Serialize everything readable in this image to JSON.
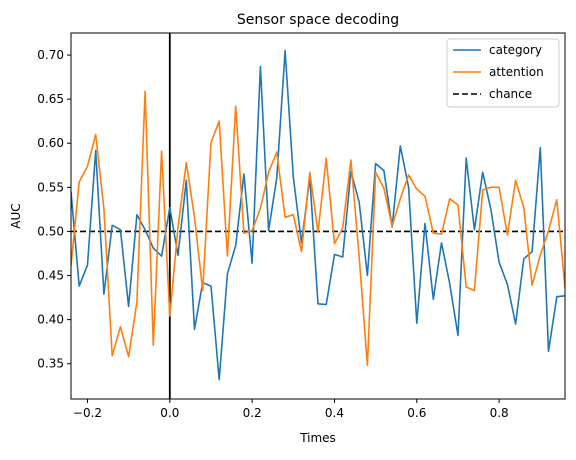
{
  "chart_data": {
    "type": "line",
    "title": "Sensor space decoding",
    "xlabel": "Times",
    "ylabel": "AUC",
    "xlim": [
      -0.24,
      0.96
    ],
    "ylim": [
      0.31,
      0.725
    ],
    "x_ticks": [
      -0.2,
      0.0,
      0.2,
      0.4,
      0.6,
      0.8
    ],
    "x_tick_labels": [
      "−0.2",
      "0.0",
      "0.2",
      "0.4",
      "0.6",
      "0.8"
    ],
    "y_ticks": [
      0.35,
      0.4,
      0.45,
      0.5,
      0.55,
      0.6,
      0.65,
      0.7
    ],
    "y_tick_labels": [
      "0.35",
      "0.40",
      "0.45",
      "0.50",
      "0.55",
      "0.60",
      "0.65",
      "0.70"
    ],
    "grid": false,
    "legend_position": "top-right",
    "x": [
      -0.24,
      -0.22,
      -0.2,
      -0.18,
      -0.16,
      -0.14,
      -0.12,
      -0.1,
      -0.08,
      -0.06,
      -0.04,
      -0.02,
      0.0,
      0.02,
      0.04,
      0.06,
      0.08,
      0.1,
      0.12,
      0.14,
      0.16,
      0.18,
      0.2,
      0.22,
      0.24,
      0.26,
      0.28,
      0.3,
      0.32,
      0.34,
      0.36,
      0.38,
      0.4,
      0.42,
      0.44,
      0.46,
      0.48,
      0.5,
      0.52,
      0.54,
      0.56,
      0.58,
      0.6,
      0.62,
      0.64,
      0.66,
      0.68,
      0.7,
      0.72,
      0.74,
      0.76,
      0.78,
      0.8,
      0.82,
      0.84,
      0.86,
      0.88,
      0.9,
      0.92,
      0.94,
      0.96
    ],
    "series": [
      {
        "name": "category",
        "color": "#1f77b4",
        "values": [
          0.545,
          0.438,
          0.462,
          0.592,
          0.429,
          0.507,
          0.502,
          0.415,
          0.519,
          0.502,
          0.481,
          0.472,
          0.527,
          0.473,
          0.558,
          0.389,
          0.442,
          0.438,
          0.332,
          0.452,
          0.484,
          0.565,
          0.464,
          0.687,
          0.501,
          0.561,
          0.705,
          0.562,
          0.487,
          0.561,
          0.418,
          0.417,
          0.474,
          0.471,
          0.568,
          0.533,
          0.45,
          0.577,
          0.569,
          0.505,
          0.597,
          0.55,
          0.396,
          0.509,
          0.423,
          0.487,
          0.441,
          0.382,
          0.583,
          0.502,
          0.567,
          0.525,
          0.465,
          0.44,
          0.395,
          0.469,
          0.477,
          0.595,
          0.364,
          0.426,
          0.427
        ]
      },
      {
        "name": "attention",
        "color": "#ff7f0e",
        "values": [
          0.461,
          0.556,
          0.574,
          0.61,
          0.526,
          0.359,
          0.392,
          0.358,
          0.42,
          0.659,
          0.371,
          0.591,
          0.404,
          0.505,
          0.578,
          0.516,
          0.433,
          0.601,
          0.625,
          0.472,
          0.642,
          0.498,
          0.501,
          0.526,
          0.567,
          0.59,
          0.516,
          0.519,
          0.477,
          0.567,
          0.499,
          0.583,
          0.486,
          0.504,
          0.581,
          0.471,
          0.348,
          0.567,
          0.549,
          0.506,
          0.537,
          0.564,
          0.548,
          0.54,
          0.498,
          0.497,
          0.537,
          0.53,
          0.437,
          0.433,
          0.547,
          0.55,
          0.55,
          0.496,
          0.558,
          0.527,
          0.439,
          0.473,
          0.501,
          0.536,
          0.436
        ]
      }
    ],
    "reference_lines": [
      {
        "name": "chance",
        "orientation": "horizontal",
        "value": 0.5,
        "style": "dashed",
        "color": "#000000"
      },
      {
        "name": "",
        "orientation": "vertical",
        "value": 0.0,
        "style": "solid",
        "color": "#000000"
      }
    ]
  }
}
